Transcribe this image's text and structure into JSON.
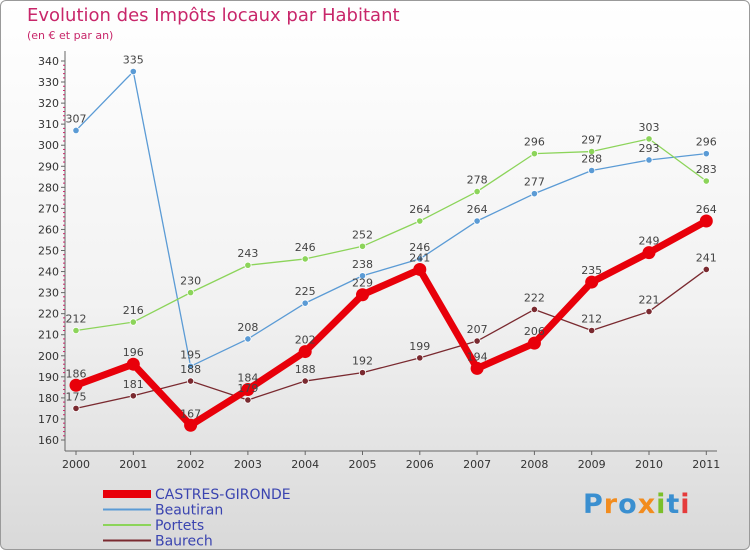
{
  "title": "Evolution des Impôts locaux par Habitant",
  "subtitle": "(en € et par an)",
  "logo": {
    "text": "Proxiti",
    "letter_colors": [
      "#3a8fd0",
      "#f28c1e",
      "#3a8fd0",
      "#f28c1e",
      "#7bbf2a",
      "#3a8fd0",
      "#e53b3b"
    ]
  },
  "chart_data": {
    "type": "line",
    "title": "Evolution des Impôts locaux par Habitant",
    "subtitle": "(en € et par an)",
    "x": [
      "2000",
      "2001",
      "2002",
      "2003",
      "2004",
      "2005",
      "2006",
      "2007",
      "2008",
      "2009",
      "2010",
      "2011"
    ],
    "ylim": [
      160,
      340
    ],
    "yticks": [
      160,
      170,
      180,
      190,
      200,
      210,
      220,
      230,
      240,
      250,
      260,
      270,
      280,
      290,
      300,
      310,
      320,
      330,
      340
    ],
    "grid": false,
    "legend_position": "bottom-left",
    "series": [
      {
        "name": "CASTRES-GIRONDE",
        "color": "#e8000a",
        "values": [
          186,
          196,
          167,
          184,
          202,
          229,
          241,
          194,
          206,
          235,
          249,
          264
        ]
      },
      {
        "name": "Beautiran",
        "color": "#5b9bd5",
        "values": [
          307,
          335,
          195,
          208,
          225,
          238,
          246,
          264,
          277,
          288,
          293,
          296
        ]
      },
      {
        "name": "Portets",
        "color": "#8cd45a",
        "values": [
          212,
          216,
          230,
          243,
          246,
          252,
          264,
          278,
          296,
          297,
          303,
          283
        ]
      },
      {
        "name": "Baurech",
        "color": "#7a2a30",
        "values": [
          175,
          181,
          188,
          179,
          188,
          192,
          199,
          207,
          222,
          212,
          221,
          241
        ]
      }
    ]
  }
}
